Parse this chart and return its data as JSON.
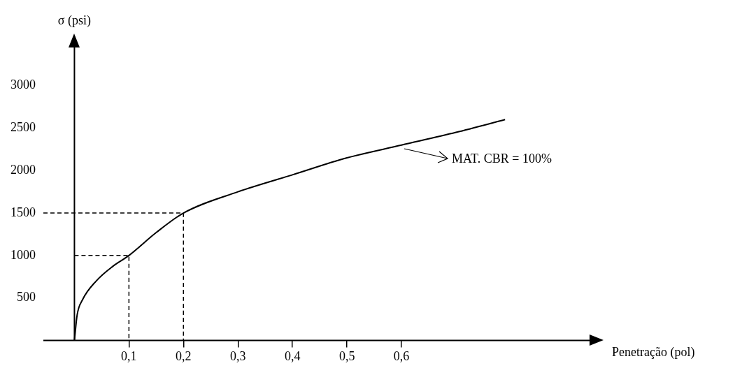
{
  "chart_data": {
    "type": "line",
    "xlabel": "Penetração (pol)",
    "ylabel": "σ (psi)",
    "xlim": [
      -0.057,
      0.945
    ],
    "ylim": [
      0,
      3450
    ],
    "xticks": [
      {
        "value": 0.1,
        "label": "0,1"
      },
      {
        "value": 0.2,
        "label": "0,2"
      },
      {
        "value": 0.3,
        "label": "0,3"
      },
      {
        "value": 0.4,
        "label": "0,4"
      },
      {
        "value": 0.5,
        "label": "0,5"
      },
      {
        "value": 0.6,
        "label": "0,6"
      }
    ],
    "yticks": [
      500,
      1000,
      1500,
      2000,
      2500,
      3000
    ],
    "marker": "none",
    "series": [
      {
        "color": "#000000",
        "line_style": "solid",
        "x": [
          0,
          0.005,
          0.015,
          0.04,
          0.07,
          0.1,
          0.15,
          0.2,
          0.3,
          0.4,
          0.5,
          0.6,
          0.7,
          0.79
        ],
        "values": [
          0,
          300,
          480,
          700,
          870,
          1000,
          1270,
          1500,
          1750,
          1950,
          2150,
          2300,
          2450,
          2600
        ]
      },
      {
        "color": "#000000",
        "line_style": "dashed",
        "x": [
          0,
          0.1,
          0.1
        ],
        "values": [
          1000,
          1000,
          0
        ]
      },
      {
        "color": "#000000",
        "line_style": "dashed",
        "x": [
          -0.057,
          0.2,
          0.2
        ],
        "values": [
          1500,
          1500,
          0
        ]
      }
    ],
    "annotations": [
      {
        "text": "MAT. CBR = 100%",
        "x": 0.6,
        "y": 2290
      }
    ]
  }
}
